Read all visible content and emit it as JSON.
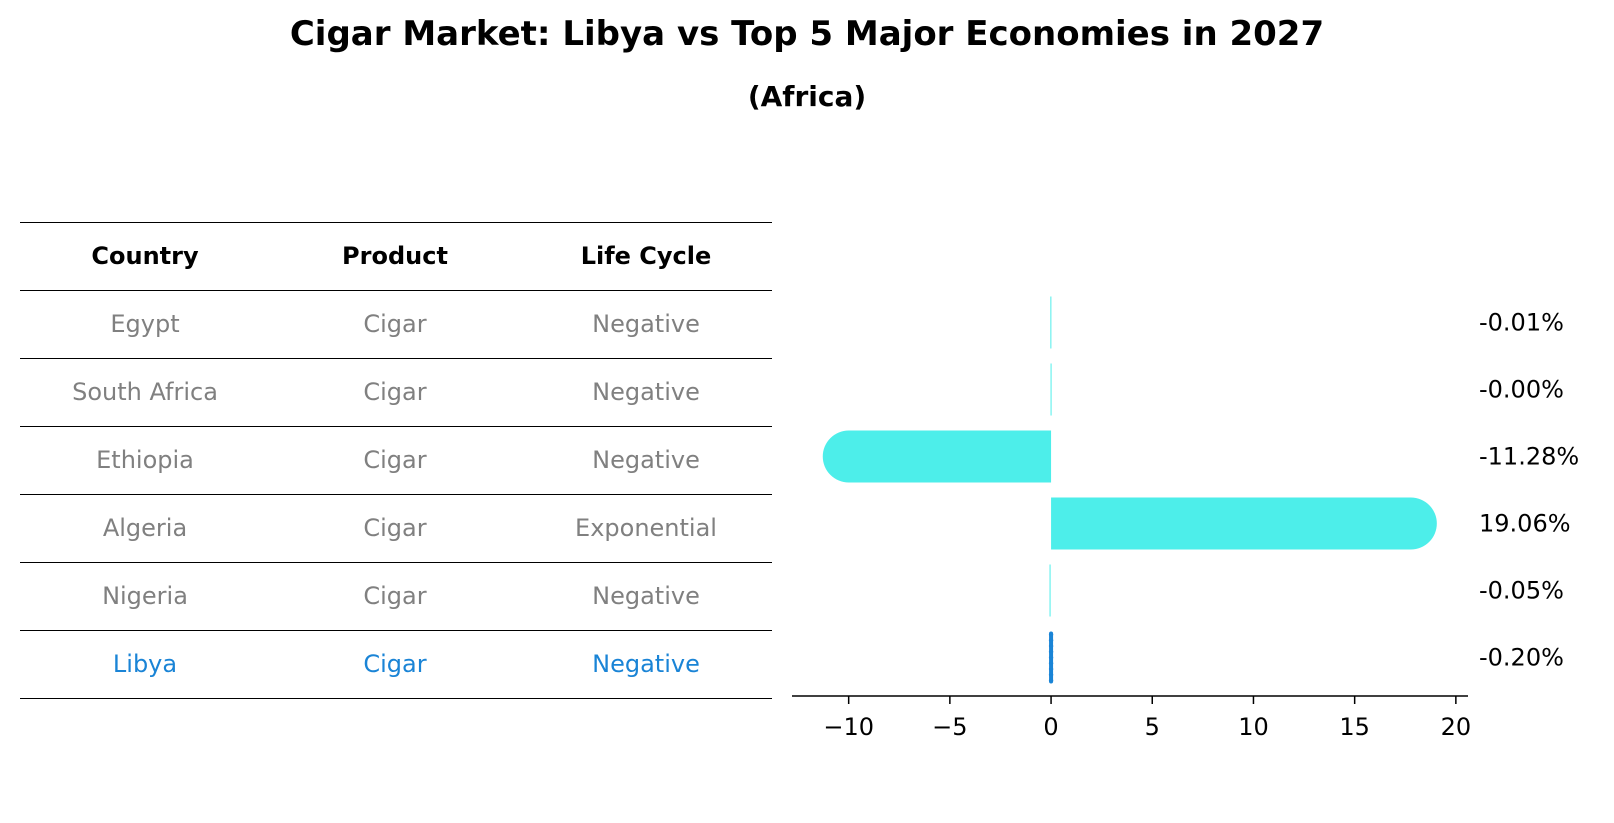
{
  "title": "Cigar Market: Libya vs Top 5 Major Economies in 2027",
  "subtitle": "(Africa)",
  "table": {
    "headers": [
      "Country",
      "Product",
      "Life Cycle"
    ],
    "rows": [
      {
        "country": "Egypt",
        "product": "Cigar",
        "life_cycle": "Negative"
      },
      {
        "country": "South Africa",
        "product": "Cigar",
        "life_cycle": "Negative"
      },
      {
        "country": "Ethiopia",
        "product": "Cigar",
        "life_cycle": "Negative"
      },
      {
        "country": "Algeria",
        "product": "Cigar",
        "life_cycle": "Exponential"
      },
      {
        "country": "Nigeria",
        "product": "Cigar",
        "life_cycle": "Negative"
      },
      {
        "country": "Libya",
        "product": "Cigar",
        "life_cycle": "Negative"
      }
    ],
    "highlight_row": 5,
    "highlight_color": "#1a84d6",
    "text_color": "#808080"
  },
  "chart_data": {
    "type": "bar",
    "orientation": "horizontal",
    "categories": [
      "Egypt",
      "South Africa",
      "Ethiopia",
      "Algeria",
      "Nigeria",
      "Libya"
    ],
    "values": [
      -0.01,
      -0.0,
      -11.28,
      19.06,
      -0.05,
      -0.2
    ],
    "value_labels": [
      "-0.01%",
      "-0.00%",
      "-11.28%",
      "19.06%",
      "-0.05%",
      "-0.20%"
    ],
    "xlim": [
      -12.8,
      20.6
    ],
    "xticks": [
      -10,
      -5,
      0,
      5,
      10,
      15,
      20
    ],
    "xtick_labels": [
      "−10",
      "−5",
      "0",
      "5",
      "10",
      "15",
      "20"
    ],
    "bar_color": "#4deeea",
    "highlight_color": "#1a84d6",
    "highlight_index": 5,
    "grid": false
  }
}
